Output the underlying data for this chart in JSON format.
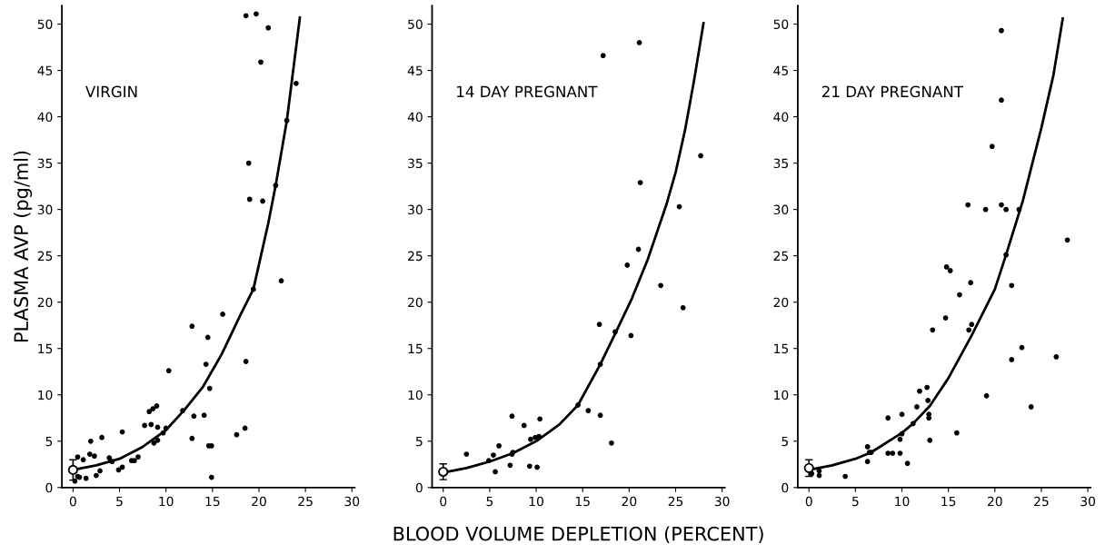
{
  "chart_data": [
    {
      "type": "scatter",
      "ylabel": "PLASMA AVP (pg/ml)",
      "annotations": [
        "VIRGIN"
      ],
      "xlim": [
        -1.2,
        30.3
      ],
      "ylim": [
        0,
        52
      ],
      "xticks": [
        0,
        5,
        10,
        15,
        20,
        25,
        30
      ],
      "yticks": [
        0,
        5,
        10,
        15,
        20,
        25,
        30,
        35,
        40,
        45,
        50
      ],
      "grid": false,
      "marker": "circle",
      "series": [
        {
          "color": "#000000",
          "x": [
            18.6,
            19.7,
            21.0,
            20.2,
            24.0,
            23.0,
            18.9,
            19.0,
            20.4,
            21.8,
            22.4,
            19.4,
            16.1,
            12.8,
            14.5,
            14.3,
            18.6,
            10.3,
            14.7,
            11.8,
            13.0,
            14.1,
            9.0,
            8.6,
            8.2,
            7.7,
            8.4,
            9.1,
            10.0,
            9.7,
            8.7,
            9.1,
            12.8,
            14.6,
            14.9,
            17.6,
            18.5,
            14.9,
            5.3,
            3.1,
            1.9,
            1.8,
            2.3,
            1.1,
            0.5,
            3.9,
            4.2,
            6.3,
            6.6,
            7.0,
            5.3,
            4.9,
            2.9,
            2.5,
            0.5,
            0.7,
            1.4,
            0.2
          ],
          "values": [
            50.9,
            51.1,
            49.6,
            45.9,
            43.6,
            39.6,
            35.0,
            31.1,
            30.9,
            32.6,
            22.3,
            21.4,
            18.7,
            17.4,
            16.2,
            13.3,
            13.6,
            12.6,
            10.7,
            8.3,
            7.7,
            7.8,
            8.8,
            8.5,
            8.2,
            6.7,
            6.8,
            6.5,
            6.4,
            5.9,
            4.8,
            5.1,
            5.3,
            4.5,
            4.5,
            5.7,
            6.4,
            1.1,
            6.0,
            5.4,
            5.0,
            3.6,
            3.4,
            3.0,
            3.3,
            3.2,
            2.8,
            2.9,
            2.9,
            3.3,
            2.2,
            1.9,
            1.8,
            1.3,
            1.2,
            1.1,
            1.0,
            0.7
          ]
        },
        {
          "type": "line",
          "marker": "none",
          "color": "#000000",
          "x": [
            0,
            2.5,
            5,
            7.5,
            10,
            12,
            14,
            16,
            18,
            19.4,
            21,
            21.8,
            23,
            24.4
          ],
          "values": [
            1.9,
            2.4,
            3.1,
            4.4,
            6.2,
            8.4,
            10.9,
            14.4,
            18.6,
            21.4,
            28.5,
            32.6,
            39.6,
            50.7
          ]
        },
        {
          "type": "scatter",
          "color": "#ffffff",
          "x": [
            0
          ],
          "values": [
            1.9
          ],
          "errors": [
            1.1
          ]
        }
      ]
    },
    {
      "type": "scatter",
      "xlabel": "BLOOD VOLUME DEPLETION (PERCENT)",
      "annotations": [
        "14 DAY PREGNANT"
      ],
      "xlim": [
        -1.2,
        30.3
      ],
      "ylim": [
        0,
        52
      ],
      "xticks": [
        0,
        5,
        10,
        15,
        20,
        25,
        30
      ],
      "yticks": [
        0,
        5,
        10,
        15,
        20,
        25,
        30,
        35,
        40,
        45,
        50
      ],
      "grid": false,
      "marker": "circle",
      "series": [
        {
          "color": "#000000",
          "x": [
            21.1,
            17.2,
            27.7,
            21.2,
            25.4,
            21.0,
            19.8,
            23.4,
            25.8,
            16.8,
            18.5,
            20.2,
            16.9,
            14.5,
            15.6,
            16.9,
            18.1,
            7.4,
            10.4,
            8.7,
            10.3,
            9.9,
            9.4,
            7.5,
            7.4,
            6.0,
            5.4,
            4.9,
            2.5,
            5.6,
            7.2,
            9.3,
            10.1
          ],
          "values": [
            48.0,
            46.6,
            35.8,
            32.9,
            30.3,
            25.7,
            24.0,
            21.8,
            19.4,
            17.6,
            16.8,
            16.4,
            13.3,
            8.9,
            8.3,
            7.8,
            4.8,
            7.7,
            7.4,
            6.7,
            5.5,
            5.4,
            5.2,
            3.8,
            3.6,
            4.5,
            3.5,
            2.9,
            3.6,
            1.7,
            2.4,
            2.3,
            2.2
          ]
        },
        {
          "type": "line",
          "marker": "none",
          "color": "#000000",
          "x": [
            0,
            2.5,
            5,
            7.5,
            10,
            12.5,
            14.5,
            16.9,
            18.5,
            20.3,
            22,
            24,
            25,
            26,
            27,
            28
          ],
          "values": [
            1.6,
            2.1,
            2.8,
            3.7,
            5.0,
            6.8,
            8.9,
            13.3,
            16.6,
            20.4,
            24.6,
            30.5,
            34.0,
            38.5,
            44.0,
            50.1
          ]
        },
        {
          "type": "scatter",
          "color": "#ffffff",
          "x": [
            0
          ],
          "values": [
            1.7
          ],
          "errors": [
            0.85
          ]
        }
      ]
    },
    {
      "type": "scatter",
      "annotations": [
        "21 DAY PREGNANT"
      ],
      "xlim": [
        -1.2,
        30.3
      ],
      "ylim": [
        0,
        52
      ],
      "xticks": [
        0,
        5,
        10,
        15,
        20,
        25,
        30
      ],
      "yticks": [
        0,
        5,
        10,
        15,
        20,
        25,
        30,
        35,
        40,
        45,
        50
      ],
      "grid": false,
      "marker": "circle",
      "series": [
        {
          "color": "#000000",
          "x": [
            20.7,
            20.7,
            19.7,
            17.1,
            19.0,
            20.7,
            21.2,
            22.6,
            27.8,
            21.2,
            14.8,
            15.2,
            17.4,
            21.8,
            16.2,
            14.7,
            17.5,
            17.2,
            13.3,
            22.9,
            26.6,
            21.8,
            11.9,
            12.7,
            12.8,
            19.1,
            23.9,
            11.6,
            10.0,
            12.9,
            12.9,
            8.5,
            11.2,
            10.0,
            9.8,
            13.0,
            15.9,
            6.3,
            6.5,
            6.7,
            8.5,
            9.0,
            9.8,
            6.3,
            10.6,
            3.9,
            1.1,
            1.1,
            0.3
          ],
          "values": [
            49.3,
            41.8,
            36.8,
            30.5,
            30.0,
            30.5,
            30.0,
            30.0,
            26.7,
            25.1,
            23.8,
            23.4,
            22.1,
            21.8,
            20.8,
            18.3,
            17.6,
            17.0,
            17.0,
            15.1,
            14.1,
            13.8,
            10.4,
            10.8,
            9.4,
            9.9,
            8.7,
            8.7,
            7.9,
            7.9,
            7.5,
            7.5,
            6.9,
            5.8,
            5.2,
            5.1,
            5.9,
            4.4,
            3.8,
            3.8,
            3.7,
            3.7,
            3.7,
            2.8,
            2.6,
            1.2,
            1.8,
            1.3,
            1.5
          ]
        },
        {
          "type": "line",
          "marker": "none",
          "color": "#000000",
          "x": [
            0,
            2.5,
            5,
            6.7,
            10,
            11.2,
            13,
            15,
            17.5,
            20,
            21.2,
            23,
            25,
            26.3,
            27.3
          ],
          "values": [
            1.9,
            2.4,
            3.1,
            3.8,
            5.9,
            6.9,
            8.8,
            11.8,
            16.4,
            21.4,
            25.1,
            30.9,
            38.8,
            44.5,
            50.6
          ]
        },
        {
          "type": "scatter",
          "color": "#ffffff",
          "x": [
            0
          ],
          "values": [
            2.1
          ],
          "errors": [
            0.9
          ]
        }
      ]
    }
  ]
}
